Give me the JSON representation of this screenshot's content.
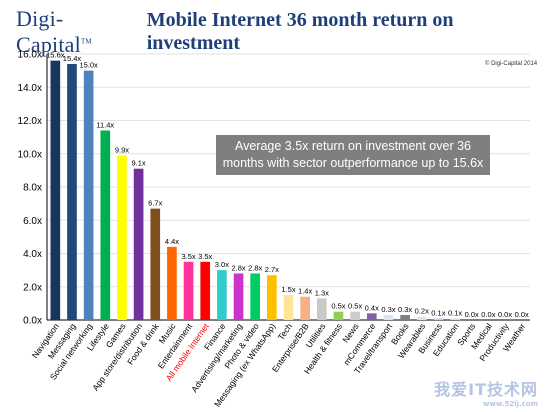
{
  "header": {
    "brand": "Digi-Capital",
    "brand_tm": "TM",
    "title": "Mobile Internet 36 month return on investment"
  },
  "copyright": "© Digi-Capital 2014",
  "callout": "Average 3.5x return on investment over 36 months with sector outperformance up to 15.6x",
  "watermark": {
    "text": "我爱IT技术网",
    "url": "www.52ij.com"
  },
  "chart_data": {
    "type": "bar",
    "title": "Mobile Internet 36 month return on investment",
    "ylim": [
      0,
      16
    ],
    "yticks": [
      "0.0x",
      "2.0x",
      "4.0x",
      "6.0x",
      "8.0x",
      "10.0x",
      "12.0x",
      "14.0x",
      "16.0x"
    ],
    "grid": true,
    "categories": [
      "Navigation",
      "Messaging",
      "Social networking",
      "Lifestyle",
      "Games",
      "App store/distribution",
      "Food & drink",
      "Music",
      "Entertainment",
      "All mobile Internet",
      "Finance",
      "Advertising/marketing",
      "Photo & video",
      "Messaging (ex WhatsApp)",
      "Tech",
      "Enterprise/B2B",
      "Utilities",
      "Health & fitness",
      "News",
      "mCommerce",
      "Travel/transport",
      "Books",
      "Wearables",
      "Business",
      "Education",
      "Sports",
      "Medical",
      "Productivity",
      "Weather"
    ],
    "values": [
      15.6,
      15.4,
      15.0,
      11.4,
      9.9,
      9.1,
      6.7,
      4.4,
      3.5,
      3.5,
      3.0,
      2.8,
      2.8,
      2.7,
      1.5,
      1.4,
      1.3,
      0.5,
      0.5,
      0.4,
      0.3,
      0.3,
      0.2,
      0.1,
      0.1,
      0.0,
      0.0,
      0.0,
      0.0
    ],
    "labels": [
      "15.6x",
      "15.4x",
      "15.0x",
      "11.4x",
      "9.9x",
      "9.1x",
      "6.7x",
      "4.4x",
      "3.5x",
      "3.5x",
      "3.0x",
      "2.8x",
      "2.8x",
      "2.7x",
      "1.5x",
      "1.4x",
      "1.3x",
      "0.5x",
      "0.5x",
      "0.4x",
      "0.3x",
      "0.3x",
      "0.2x",
      "0.1x",
      "0.1x",
      "0.0x",
      "0.0x",
      "0.0x",
      "0.0x"
    ],
    "colors": [
      "#17375e",
      "#1f497d",
      "#4f81bd",
      "#00b050",
      "#ffff00",
      "#7030a0",
      "#7f4f1f",
      "#ff6600",
      "#ff3399",
      "#ff0000",
      "#33cccc",
      "#cc33cc",
      "#00cc66",
      "#ffc000",
      "#ffe599",
      "#f4b183",
      "#c9c9c9",
      "#92d050",
      "#cccccc",
      "#8064a2",
      "#dbe5f1",
      "#7f7f7f",
      "#dbe5f1",
      "#bdd7ee",
      "#dddddd",
      "#e0e0e0",
      "#e0e0e0",
      "#e0e0e0",
      "#e0e0e0"
    ],
    "highlight_category": "All mobile Internet",
    "highlight_color": "#ff0000",
    "tick_color": "#000000"
  }
}
